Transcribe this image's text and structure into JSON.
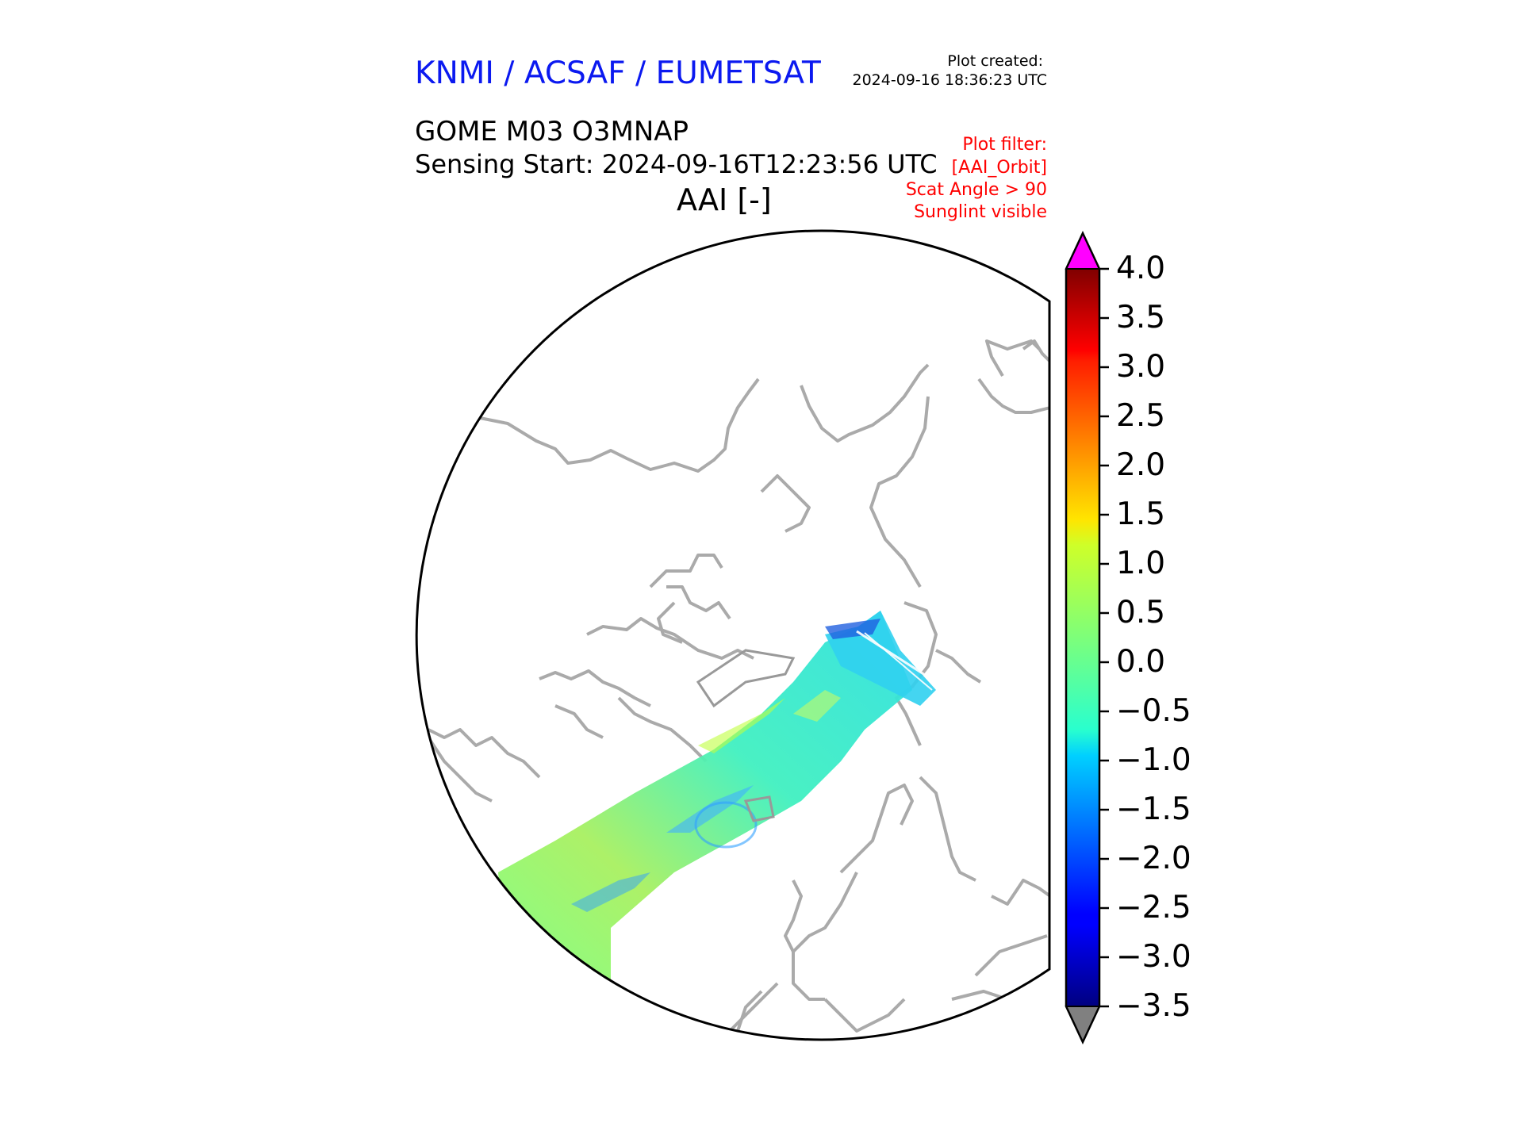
{
  "header": {
    "organization": "KNMI / ACSAF / EUMETSAT",
    "plot_created_label": "Plot created:",
    "plot_created_time": "2024-09-16 18:36:23 UTC",
    "product": "GOME M03 O3MNAP",
    "sensing_start": "Sensing Start: 2024-09-16T12:23:56 UTC",
    "variable": "AAI [-]"
  },
  "filter": {
    "label": "Plot filter:",
    "items": [
      "[AAI_Orbit]",
      "Scat Angle > 90",
      "Sunglint visible"
    ]
  },
  "colorbar": {
    "min": -3.5,
    "max": 4.0,
    "ticks": [
      "4.0",
      "3.5",
      "3.0",
      "2.5",
      "2.0",
      "1.5",
      "1.0",
      "0.5",
      "0.0",
      "−0.5",
      "−1.0",
      "−1.5",
      "−2.0",
      "−2.5",
      "−3.0",
      "−3.5"
    ],
    "cmap": "jet",
    "over_color": "#ff00ff",
    "under_color": "#808080"
  },
  "map": {
    "projection": "north-polar-stereographic",
    "coastline_color": "#aaaaaa",
    "swath_dominant_range": [
      -1.0,
      1.0
    ]
  }
}
